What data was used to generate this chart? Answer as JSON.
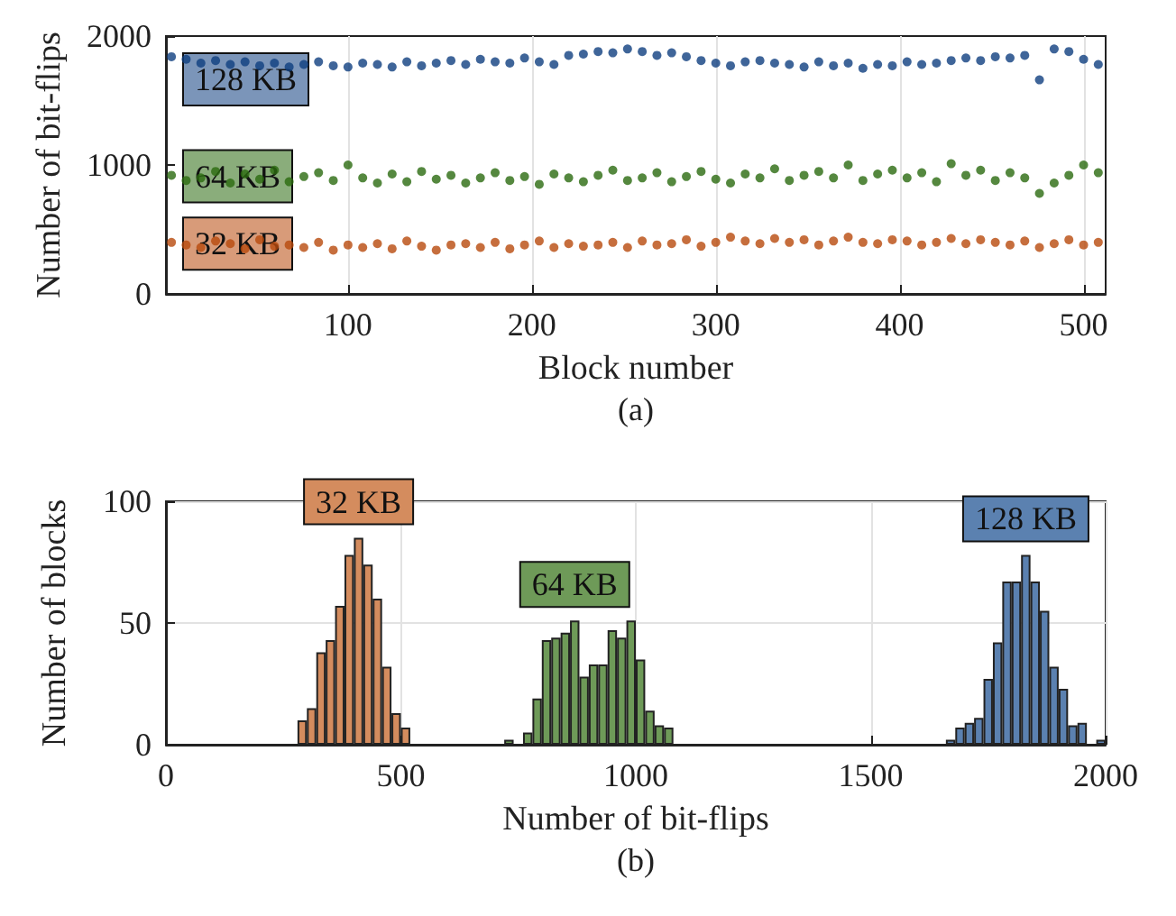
{
  "chart_data": [
    {
      "type": "scatter",
      "xlabel": "Block number",
      "ylabel": "Number of bit-flips",
      "xlim": [
        1,
        512
      ],
      "xticks": [
        100,
        200,
        300,
        400,
        500
      ],
      "ylim": [
        0,
        2000
      ],
      "yticks": [
        0,
        1000,
        2000
      ],
      "grid": "x",
      "legend": false,
      "marker": "circle",
      "annotations": [
        "(a)"
      ],
      "series": [
        {
          "name": "128 KB",
          "color": "#0f3f7f",
          "x": [
            4,
            12,
            20,
            28,
            36,
            44,
            52,
            60,
            68,
            76,
            84,
            92,
            100,
            108,
            116,
            124,
            132,
            140,
            148,
            156,
            164,
            172,
            180,
            188,
            196,
            204,
            212,
            220,
            228,
            236,
            244,
            252,
            260,
            268,
            276,
            284,
            292,
            300,
            308,
            316,
            324,
            332,
            340,
            348,
            356,
            364,
            372,
            380,
            388,
            396,
            404,
            412,
            420,
            428,
            436,
            444,
            452,
            460,
            468,
            476,
            484,
            492,
            500,
            508
          ],
          "values": [
            1840,
            1820,
            1790,
            1810,
            1780,
            1800,
            1770,
            1790,
            1760,
            1780,
            1800,
            1770,
            1760,
            1790,
            1780,
            1760,
            1800,
            1770,
            1790,
            1810,
            1780,
            1820,
            1800,
            1790,
            1830,
            1800,
            1780,
            1850,
            1860,
            1880,
            1870,
            1900,
            1880,
            1850,
            1870,
            1840,
            1810,
            1790,
            1770,
            1800,
            1810,
            1790,
            1780,
            1760,
            1800,
            1770,
            1790,
            1750,
            1780,
            1770,
            1800,
            1780,
            1790,
            1810,
            1830,
            1810,
            1840,
            1830,
            1850,
            1660,
            1900,
            1880,
            1820,
            1780
          ]
        },
        {
          "name": "64 KB",
          "color": "#2b6a0f",
          "x": [
            4,
            12,
            20,
            28,
            36,
            44,
            52,
            60,
            68,
            76,
            84,
            92,
            100,
            108,
            116,
            124,
            132,
            140,
            148,
            156,
            164,
            172,
            180,
            188,
            196,
            204,
            212,
            220,
            228,
            236,
            244,
            252,
            260,
            268,
            276,
            284,
            292,
            300,
            308,
            316,
            324,
            332,
            340,
            348,
            356,
            364,
            372,
            380,
            388,
            396,
            404,
            412,
            420,
            428,
            436,
            444,
            452,
            460,
            468,
            476,
            484,
            492,
            500,
            508
          ],
          "values": [
            920,
            880,
            900,
            950,
            860,
            930,
            890,
            960,
            870,
            910,
            940,
            880,
            1000,
            900,
            860,
            930,
            870,
            950,
            890,
            920,
            860,
            900,
            940,
            880,
            910,
            850,
            930,
            900,
            870,
            920,
            960,
            880,
            900,
            940,
            870,
            910,
            950,
            890,
            860,
            930,
            900,
            970,
            880,
            920,
            950,
            900,
            1000,
            880,
            930,
            960,
            900,
            940,
            870,
            1010,
            920,
            960,
            880,
            940,
            900,
            780,
            860,
            920,
            1000,
            940
          ]
        },
        {
          "name": "32 KB",
          "color": "#b84a0c",
          "x": [
            4,
            12,
            20,
            28,
            36,
            44,
            52,
            60,
            68,
            76,
            84,
            92,
            100,
            108,
            116,
            124,
            132,
            140,
            148,
            156,
            164,
            172,
            180,
            188,
            196,
            204,
            212,
            220,
            228,
            236,
            244,
            252,
            260,
            268,
            276,
            284,
            292,
            300,
            308,
            316,
            324,
            332,
            340,
            348,
            356,
            364,
            372,
            380,
            388,
            396,
            404,
            412,
            420,
            428,
            436,
            444,
            452,
            460,
            468,
            476,
            484,
            492,
            500,
            508
          ],
          "values": [
            400,
            380,
            360,
            410,
            390,
            350,
            420,
            370,
            380,
            360,
            400,
            340,
            380,
            360,
            390,
            350,
            410,
            370,
            340,
            380,
            390,
            360,
            400,
            350,
            380,
            410,
            360,
            390,
            370,
            380,
            400,
            360,
            410,
            380,
            390,
            420,
            370,
            400,
            440,
            410,
            390,
            430,
            400,
            420,
            380,
            410,
            440,
            400,
            390,
            420,
            410,
            380,
            400,
            430,
            390,
            420,
            400,
            380,
            410,
            360,
            390,
            420,
            380,
            400
          ]
        }
      ]
    },
    {
      "type": "histogram",
      "xlabel": "Number of bit-flips",
      "ylabel": "Number of blocks",
      "xlim": [
        0,
        2000
      ],
      "xticks": [
        0,
        500,
        1000,
        1500,
        2000
      ],
      "ylim": [
        0,
        100
      ],
      "yticks": [
        0,
        50,
        100
      ],
      "grid": true,
      "legend": false,
      "annotations": [
        "(b)"
      ],
      "series": [
        {
          "name": "32 KB",
          "color": "#d48c5e",
          "values": [
            10,
            15,
            38,
            43,
            57,
            78,
            85,
            74,
            60,
            32,
            13,
            7,
            null,
            null,
            null,
            null,
            null,
            null,
            null,
            null,
            null,
            null,
            null,
            null,
            null,
            null,
            null,
            null,
            null,
            null,
            null,
            null,
            null,
            null,
            null,
            null,
            null,
            null,
            null,
            null,
            null,
            null,
            null,
            null,
            null,
            null,
            null,
            null,
            null,
            null,
            null,
            null,
            null,
            null,
            null,
            null,
            null,
            null,
            null,
            null,
            null,
            null,
            null,
            null,
            null,
            null,
            null,
            null,
            null,
            null,
            null,
            null,
            null,
            null,
            null,
            null,
            null,
            null,
            null,
            null,
            null,
            null,
            null,
            null,
            null,
            null
          ]
        },
        {
          "name": "64 KB",
          "color": "#6e9a58",
          "values": [
            null,
            null,
            null,
            null,
            null,
            null,
            null,
            null,
            null,
            null,
            null,
            null,
            null,
            null,
            null,
            null,
            null,
            null,
            null,
            null,
            null,
            null,
            2,
            0,
            5,
            19,
            43,
            44,
            46,
            51,
            28,
            33,
            33,
            47,
            44,
            51,
            35,
            14,
            8,
            7,
            null,
            null,
            null,
            null,
            null,
            null,
            null,
            null,
            null,
            null,
            null,
            null,
            null,
            null,
            null,
            null,
            null,
            null,
            null,
            null,
            null,
            null,
            null,
            null,
            null,
            null,
            null,
            null,
            null,
            null,
            null,
            null,
            null,
            null,
            null,
            null,
            null,
            null,
            null,
            null,
            null,
            null,
            null,
            null,
            null,
            null
          ]
        },
        {
          "name": "128 KB",
          "color": "#5b81b0",
          "values": [
            null,
            null,
            null,
            null,
            null,
            null,
            null,
            null,
            null,
            null,
            null,
            null,
            null,
            null,
            null,
            null,
            null,
            null,
            null,
            null,
            null,
            null,
            null,
            null,
            null,
            null,
            null,
            null,
            null,
            null,
            null,
            null,
            null,
            null,
            null,
            null,
            null,
            null,
            null,
            null,
            null,
            null,
            null,
            null,
            null,
            null,
            null,
            null,
            null,
            null,
            null,
            null,
            null,
            null,
            null,
            null,
            null,
            null,
            null,
            null,
            null,
            null,
            null,
            null,
            null,
            null,
            null,
            null,
            null,
            2,
            7,
            9,
            11,
            27,
            42,
            67,
            67,
            78,
            67,
            55,
            32,
            23,
            8,
            9,
            0,
            2
          ]
        }
      ],
      "bins": [
        280,
        300,
        320,
        340,
        360,
        380,
        400,
        420,
        440,
        460,
        480,
        500,
        520,
        540,
        560,
        580,
        600,
        620,
        640,
        660,
        680,
        700,
        720,
        740,
        760,
        780,
        800,
        820,
        840,
        860,
        880,
        900,
        920,
        940,
        960,
        980,
        1000,
        1020,
        1040,
        1060,
        1080,
        1100,
        1120,
        1140,
        1160,
        1180,
        1200,
        1220,
        1240,
        1260,
        1280,
        1300,
        1320,
        1340,
        1360,
        1380,
        1400,
        1420,
        1440,
        1460,
        1480,
        1500,
        1520,
        1540,
        1560,
        1580,
        1600,
        1620,
        1640,
        1660,
        1680,
        1700,
        1720,
        1740,
        1760,
        1780,
        1800,
        1820,
        1840,
        1860,
        1880,
        1900,
        1920,
        1940,
        1960,
        1980,
        2000
      ]
    }
  ]
}
